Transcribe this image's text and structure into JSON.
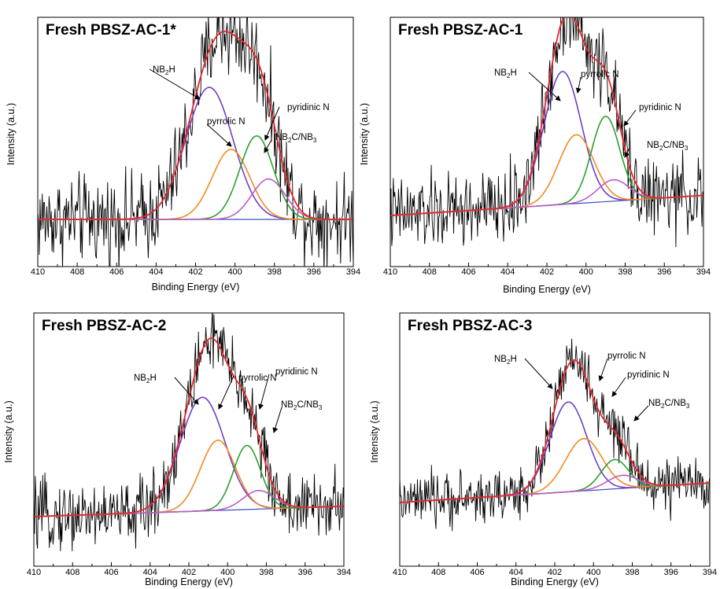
{
  "chart_data": [
    {
      "type": "line",
      "title": "Fresh PBSZ-AC-1*",
      "xlabel": "Binding Energy (eV)",
      "ylabel": "Intensity (a.u.)",
      "xlim": [
        410,
        394
      ],
      "xticks": [
        "410",
        "408",
        "406",
        "404",
        "402",
        "400",
        "398",
        "396",
        "394"
      ],
      "ylim": [
        -0.35,
        1.5
      ],
      "baseline": [
        0.0,
        0.0
      ],
      "components": [
        {
          "label": "NB",
          "label_sub": "2",
          "label_tail": "H",
          "center": 401.3,
          "height": 0.98,
          "width": 1.2,
          "color": "#6f3fc4"
        },
        {
          "label": "pyrrolic N",
          "label_sub": "",
          "label_tail": "",
          "center": 400.2,
          "height": 0.52,
          "width": 0.95,
          "color": "#f08a24"
        },
        {
          "label": "pyridinic N",
          "label_sub": "",
          "label_tail": "",
          "center": 398.9,
          "height": 0.62,
          "width": 0.85,
          "color": "#2ca02c"
        },
        {
          "label": "NB",
          "label_sub": "2",
          "label_tail": "C/NB",
          "label_sub2": "3",
          "center": 398.3,
          "height": 0.3,
          "width": 0.85,
          "color": "#c05ac8"
        }
      ],
      "envelope_color": "#e8262c",
      "raw_color": "#000000",
      "baseline_color": "#3b4fc2"
    },
    {
      "type": "line",
      "title": "Fresh PBSZ-AC-1",
      "xlabel": "Binding Energy (eV)",
      "ylabel": "Intensity (a.u.)",
      "xlim": [
        410,
        394
      ],
      "xticks": [
        "410",
        "408",
        "406",
        "404",
        "402",
        "400",
        "398",
        "396",
        "394"
      ],
      "ylim": [
        -0.45,
        1.65
      ],
      "baseline": [
        -0.02,
        0.15
      ],
      "components": [
        {
          "label": "NB",
          "label_sub": "2",
          "label_tail": "H",
          "center": 401.2,
          "height": 1.12,
          "width": 0.95,
          "color": "#6f3fc4"
        },
        {
          "label": "pyrrolic N",
          "label_sub": "",
          "label_tail": "",
          "center": 400.5,
          "height": 0.58,
          "width": 0.9,
          "color": "#f08a24"
        },
        {
          "label": "pyridinic N",
          "label_sub": "",
          "label_tail": "",
          "center": 399.0,
          "height": 0.72,
          "width": 0.72,
          "color": "#2ca02c"
        },
        {
          "label": "NB",
          "label_sub": "2",
          "label_tail": "C/NB",
          "label_sub2": "3",
          "center": 398.6,
          "height": 0.18,
          "width": 0.8,
          "color": "#c05ac8"
        }
      ],
      "envelope_color": "#e8262c",
      "raw_color": "#000000",
      "baseline_color": "#3b4fc2"
    },
    {
      "type": "line",
      "title": "Fresh PBSZ-AC-2",
      "xlabel": "Binding Energy (eV)",
      "ylabel": "Intensity (a.u.)",
      "xlim": [
        410,
        394
      ],
      "xticks": [
        "410",
        "408",
        "406",
        "404",
        "402",
        "400",
        "398",
        "396",
        "394"
      ],
      "ylim": [
        -0.5,
        1.95
      ],
      "baseline": [
        -0.02,
        0.08
      ],
      "components": [
        {
          "label": "NB",
          "label_sub": "2",
          "label_tail": "H",
          "center": 401.3,
          "height": 1.1,
          "width": 1.15,
          "color": "#6f3fc4"
        },
        {
          "label": "pyrrolic N",
          "label_sub": "",
          "label_tail": "",
          "center": 400.5,
          "height": 0.68,
          "width": 0.9,
          "color": "#f08a24"
        },
        {
          "label": "pyridinic N",
          "label_sub": "",
          "label_tail": "",
          "center": 399.0,
          "height": 0.62,
          "width": 0.7,
          "color": "#2ca02c"
        },
        {
          "label": "NB",
          "label_sub": "2",
          "label_tail": "C/NB",
          "label_sub2": "3",
          "center": 398.4,
          "height": 0.18,
          "width": 0.8,
          "color": "#c05ac8"
        }
      ],
      "envelope_color": "#e8262c",
      "raw_color": "#000000",
      "baseline_color": "#3b4fc2"
    },
    {
      "type": "line",
      "title": "Fresh PBSZ-AC-3",
      "xlabel": "Binding Energy (eV)",
      "ylabel": "Intensity (a.u.)",
      "xlim": [
        410,
        394
      ],
      "xticks": [
        "410",
        "408",
        "406",
        "404",
        "402",
        "400",
        "398",
        "396",
        "394"
      ],
      "ylim": [
        -0.8,
        2.3
      ],
      "baseline": [
        -0.02,
        0.22
      ],
      "components": [
        {
          "label": "NB",
          "label_sub": "2",
          "label_tail": "H",
          "center": 401.3,
          "height": 1.1,
          "width": 0.95,
          "color": "#6f3fc4"
        },
        {
          "label": "pyrrolic N",
          "label_sub": "",
          "label_tail": "",
          "center": 400.5,
          "height": 0.64,
          "width": 0.95,
          "color": "#f08a24"
        },
        {
          "label": "pyridinic N",
          "label_sub": "",
          "label_tail": "",
          "center": 398.9,
          "height": 0.36,
          "width": 0.7,
          "color": "#2ca02c"
        },
        {
          "label": "NB",
          "label_sub": "2",
          "label_tail": "C/NB",
          "label_sub2": "3",
          "center": 398.5,
          "height": 0.16,
          "width": 0.8,
          "color": "#c05ac8"
        }
      ],
      "envelope_color": "#e8262c",
      "raw_color": "#000000",
      "baseline_color": "#3b4fc2"
    }
  ]
}
